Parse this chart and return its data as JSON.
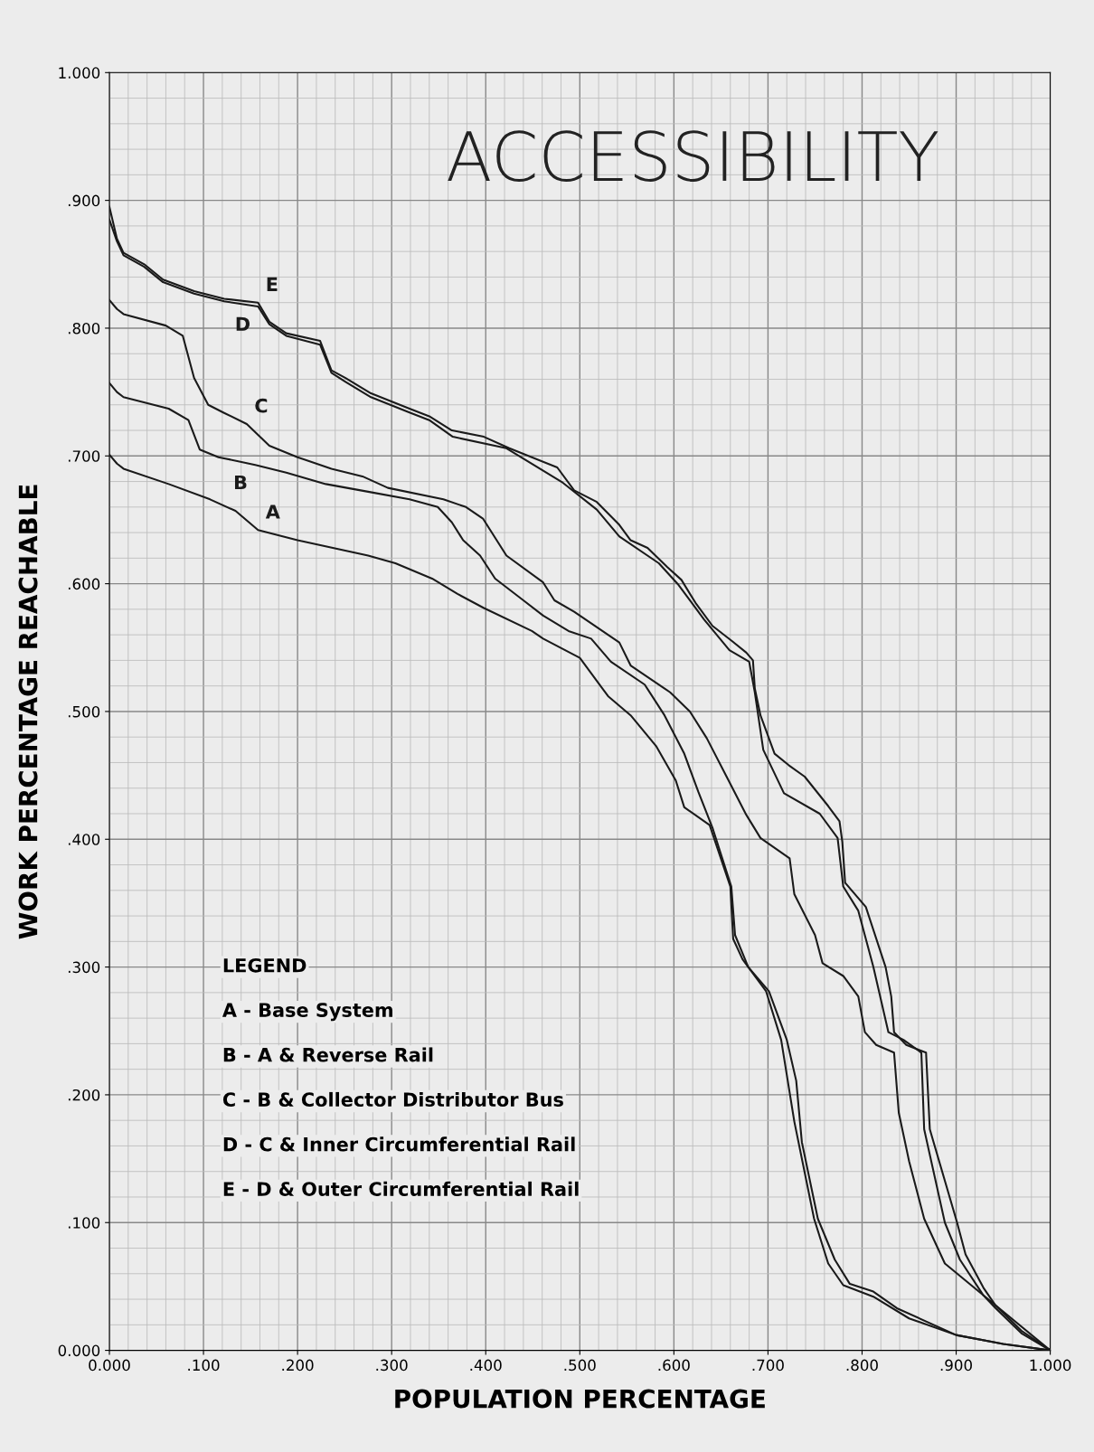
{
  "chart_data": {
    "type": "line",
    "title": "ACCESSIBILITY",
    "xlabel": "POPULATION PERCENTAGE",
    "ylabel": "WORK PERCENTAGE REACHABLE",
    "xlim": [
      0,
      1
    ],
    "ylim": [
      0,
      1
    ],
    "xticks": [
      {
        "value": 0,
        "label": "0.000"
      },
      {
        "value": 0.1,
        "label": ".100"
      },
      {
        "value": 0.2,
        "label": ".200"
      },
      {
        "value": 0.3,
        "label": ".300"
      },
      {
        "value": 0.4,
        "label": ".400"
      },
      {
        "value": 0.5,
        "label": ".500"
      },
      {
        "value": 0.6,
        "label": ".600"
      },
      {
        "value": 0.7,
        "label": ".700"
      },
      {
        "value": 0.8,
        "label": ".800"
      },
      {
        "value": 0.9,
        "label": ".900"
      },
      {
        "value": 1,
        "label": "1.000"
      }
    ],
    "yticks": [
      {
        "value": 0,
        "label": "0.000"
      },
      {
        "value": 0.1,
        "label": ".100"
      },
      {
        "value": 0.2,
        "label": ".200"
      },
      {
        "value": 0.3,
        "label": ".300"
      },
      {
        "value": 0.4,
        "label": ".400"
      },
      {
        "value": 0.5,
        "label": ".500"
      },
      {
        "value": 0.6,
        "label": ".600"
      },
      {
        "value": 0.7,
        "label": ".700"
      },
      {
        "value": 0.8,
        "label": ".800"
      },
      {
        "value": 0.9,
        "label": ".900"
      },
      {
        "value": 1,
        "label": "1.000"
      }
    ],
    "grid": true,
    "marker": "none",
    "line_style": "solid",
    "series": [
      {
        "name": "A",
        "color": "#1a1a1a",
        "x": [
          0,
          0.008,
          0.015,
          0.063,
          0.107,
          0.134,
          0.158,
          0.2,
          0.275,
          0.304,
          0.343,
          0.37,
          0.398,
          0.449,
          0.461,
          0.5,
          0.53,
          0.554,
          0.581,
          0.602,
          0.611,
          0.638,
          0.66,
          0.663,
          0.673,
          0.698,
          0.714,
          0.728,
          0.749,
          0.764,
          0.78,
          0.812,
          0.85,
          0.9,
          0.95,
          1.0
        ],
        "values": [
          0.701,
          0.694,
          0.69,
          0.678,
          0.666,
          0.657,
          0.642,
          0.634,
          0.622,
          0.616,
          0.604,
          0.592,
          0.581,
          0.563,
          0.557,
          0.542,
          0.512,
          0.497,
          0.473,
          0.446,
          0.425,
          0.411,
          0.363,
          0.322,
          0.306,
          0.281,
          0.243,
          0.179,
          0.103,
          0.068,
          0.051,
          0.042,
          0.025,
          0.012,
          0.005,
          0.0
        ]
      },
      {
        "name": "B",
        "color": "#1a1a1a",
        "x": [
          0,
          0.008,
          0.015,
          0.063,
          0.084,
          0.096,
          0.116,
          0.155,
          0.188,
          0.23,
          0.275,
          0.319,
          0.349,
          0.364,
          0.376,
          0.394,
          0.41,
          0.44,
          0.461,
          0.488,
          0.512,
          0.533,
          0.569,
          0.59,
          0.611,
          0.626,
          0.641,
          0.661,
          0.665,
          0.679,
          0.701,
          0.72,
          0.73,
          0.736,
          0.753,
          0.771,
          0.787,
          0.812,
          0.837,
          0.9,
          0.95,
          1.0
        ],
        "values": [
          0.757,
          0.75,
          0.746,
          0.737,
          0.728,
          0.705,
          0.699,
          0.693,
          0.687,
          0.678,
          0.672,
          0.666,
          0.66,
          0.648,
          0.634,
          0.622,
          0.604,
          0.587,
          0.575,
          0.563,
          0.557,
          0.539,
          0.521,
          0.497,
          0.467,
          0.437,
          0.409,
          0.363,
          0.325,
          0.3,
          0.281,
          0.243,
          0.211,
          0.163,
          0.103,
          0.071,
          0.052,
          0.046,
          0.033,
          0.012,
          0.005,
          0.0
        ]
      },
      {
        "name": "C",
        "color": "#1a1a1a",
        "x": [
          0,
          0.008,
          0.015,
          0.06,
          0.078,
          0.09,
          0.105,
          0.121,
          0.146,
          0.17,
          0.2,
          0.236,
          0.269,
          0.296,
          0.355,
          0.379,
          0.397,
          0.422,
          0.461,
          0.473,
          0.494,
          0.518,
          0.542,
          0.554,
          0.596,
          0.617,
          0.635,
          0.656,
          0.677,
          0.692,
          0.723,
          0.728,
          0.75,
          0.758,
          0.78,
          0.796,
          0.803,
          0.815,
          0.834,
          0.839,
          0.85,
          0.866,
          0.888,
          0.939,
          1.0
        ],
        "values": [
          0.822,
          0.815,
          0.811,
          0.802,
          0.794,
          0.761,
          0.74,
          0.734,
          0.725,
          0.708,
          0.699,
          0.69,
          0.684,
          0.675,
          0.666,
          0.66,
          0.651,
          0.622,
          0.601,
          0.587,
          0.578,
          0.566,
          0.554,
          0.536,
          0.515,
          0.5,
          0.479,
          0.449,
          0.419,
          0.401,
          0.385,
          0.357,
          0.325,
          0.303,
          0.293,
          0.277,
          0.249,
          0.239,
          0.233,
          0.186,
          0.148,
          0.103,
          0.068,
          0.037,
          0.0
        ]
      },
      {
        "name": "D",
        "color": "#1a1a1a",
        "x": [
          0,
          0.008,
          0.015,
          0.037,
          0.057,
          0.09,
          0.122,
          0.158,
          0.17,
          0.188,
          0.224,
          0.236,
          0.251,
          0.278,
          0.319,
          0.34,
          0.365,
          0.422,
          0.482,
          0.518,
          0.542,
          0.584,
          0.605,
          0.632,
          0.659,
          0.68,
          0.686,
          0.695,
          0.717,
          0.755,
          0.774,
          0.78,
          0.796,
          0.812,
          0.828,
          0.844,
          0.863,
          0.866,
          0.888,
          0.904,
          0.929,
          0.942,
          0.97,
          1.0
        ],
        "values": [
          0.885,
          0.868,
          0.857,
          0.848,
          0.836,
          0.827,
          0.821,
          0.817,
          0.803,
          0.794,
          0.787,
          0.765,
          0.758,
          0.746,
          0.734,
          0.728,
          0.715,
          0.706,
          0.679,
          0.658,
          0.637,
          0.616,
          0.599,
          0.572,
          0.548,
          0.539,
          0.515,
          0.47,
          0.436,
          0.42,
          0.401,
          0.363,
          0.344,
          0.3,
          0.249,
          0.243,
          0.233,
          0.173,
          0.1,
          0.071,
          0.043,
          0.033,
          0.013,
          0.0
        ]
      },
      {
        "name": "E",
        "color": "#1a1a1a",
        "x": [
          0,
          0.008,
          0.015,
          0.037,
          0.057,
          0.09,
          0.122,
          0.158,
          0.17,
          0.188,
          0.224,
          0.236,
          0.251,
          0.278,
          0.319,
          0.34,
          0.364,
          0.398,
          0.425,
          0.476,
          0.494,
          0.518,
          0.542,
          0.554,
          0.572,
          0.593,
          0.608,
          0.623,
          0.641,
          0.662,
          0.677,
          0.684,
          0.686,
          0.692,
          0.707,
          0.722,
          0.739,
          0.764,
          0.776,
          0.779,
          0.782,
          0.804,
          0.825,
          0.831,
          0.834,
          0.847,
          0.868,
          0.872,
          0.901,
          0.91,
          0.929,
          0.942,
          0.97,
          1.0
        ],
        "values": [
          0.895,
          0.87,
          0.859,
          0.85,
          0.838,
          0.829,
          0.823,
          0.82,
          0.805,
          0.796,
          0.79,
          0.767,
          0.761,
          0.749,
          0.737,
          0.731,
          0.72,
          0.715,
          0.706,
          0.691,
          0.673,
          0.664,
          0.646,
          0.634,
          0.628,
          0.613,
          0.603,
          0.585,
          0.567,
          0.555,
          0.546,
          0.54,
          0.518,
          0.497,
          0.467,
          0.458,
          0.449,
          0.426,
          0.414,
          0.398,
          0.366,
          0.347,
          0.3,
          0.277,
          0.249,
          0.239,
          0.233,
          0.173,
          0.1,
          0.075,
          0.049,
          0.035,
          0.015,
          0.0
        ]
      }
    ],
    "annotations": [
      "LEGEND",
      "A - Base System",
      "B - A & Reverse Rail",
      "C - B & Collector Distributor Bus",
      "D - C & Inner Circumferential Rail",
      "E - D & Outer Circumferential Rail"
    ]
  }
}
